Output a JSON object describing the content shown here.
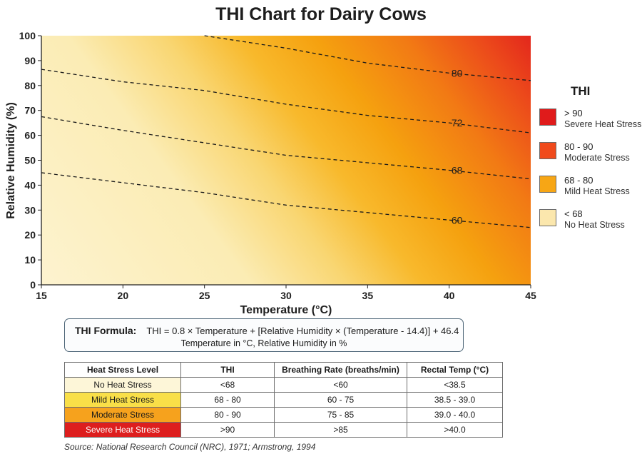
{
  "chart_data": {
    "type": "heatmap",
    "title": "THI Chart for Dairy Cows",
    "xlabel": "Temperature (°C)",
    "ylabel": "Relative Humidity (%)",
    "xlim": [
      15,
      45
    ],
    "ylim": [
      0,
      100
    ],
    "x_ticks": [
      15,
      20,
      25,
      30,
      35,
      40,
      45
    ],
    "y_ticks": [
      0,
      10,
      20,
      30,
      40,
      50,
      60,
      70,
      80,
      90,
      100
    ],
    "grid": false,
    "contours": [
      {
        "label": "60",
        "points": [
          [
            15,
            45
          ],
          [
            20,
            41
          ],
          [
            25,
            37
          ],
          [
            30,
            32
          ],
          [
            35,
            29
          ],
          [
            40,
            26
          ],
          [
            45,
            23
          ]
        ]
      },
      {
        "label": "68",
        "points": [
          [
            15,
            67.5
          ],
          [
            20,
            62
          ],
          [
            25,
            57
          ],
          [
            30,
            52
          ],
          [
            35,
            49
          ],
          [
            40,
            46
          ],
          [
            45,
            42.5
          ]
        ]
      },
      {
        "label": "72",
        "points": [
          [
            15,
            86.5
          ],
          [
            20,
            81.5
          ],
          [
            25,
            78
          ],
          [
            30,
            72.5
          ],
          [
            35,
            68
          ],
          [
            40,
            65
          ],
          [
            45,
            61
          ]
        ]
      },
      {
        "label": "80",
        "points": [
          [
            25,
            100
          ],
          [
            30,
            95
          ],
          [
            35,
            89
          ],
          [
            40,
            85
          ],
          [
            45,
            82
          ]
        ]
      }
    ],
    "legend": {
      "title": "THI",
      "placement": "right",
      "items": [
        {
          "range": "> 90",
          "desc": "Severe Heat Stress",
          "color": "#e01b1b"
        },
        {
          "range": "80 - 90",
          "desc": "Moderate Stress",
          "color": "#f04a1c"
        },
        {
          "range": "68 - 80",
          "desc": "Mild Heat Stress",
          "color": "#f7a615"
        },
        {
          "range": "< 68",
          "desc": "No Heat Stress",
          "color": "#fbe7ad"
        }
      ]
    }
  },
  "formula": {
    "label": "THI Formula:",
    "text": "THI = 0.8 × Temperature + [Relative Humidity × (Temperature - 14.4)] + 46.4",
    "units": "Temperature in °C, Relative Humidity in %"
  },
  "table": {
    "headers": [
      "Heat Stress Level",
      "THI",
      "Breathing Rate (breaths/min)",
      "Rectal Temp (°C)"
    ],
    "rows": [
      {
        "cells": [
          "No Heat Stress",
          "<68",
          "<60",
          "<38.5"
        ],
        "color": "#fdf6d8"
      },
      {
        "cells": [
          "Mild Heat Stress",
          "68 - 80",
          "60 - 75",
          "38.5 - 39.0"
        ],
        "color": "#f9df48"
      },
      {
        "cells": [
          "Moderate Stress",
          "80 - 90",
          "75 - 85",
          "39.0 - 40.0"
        ],
        "color": "#f6a21d"
      },
      {
        "cells": [
          "Severe Heat Stress",
          ">90",
          ">85",
          ">40.0"
        ],
        "color": "#dd1e1e"
      }
    ]
  },
  "source": "Source: National Research Council (NRC), 1971; Armstrong, 1994"
}
